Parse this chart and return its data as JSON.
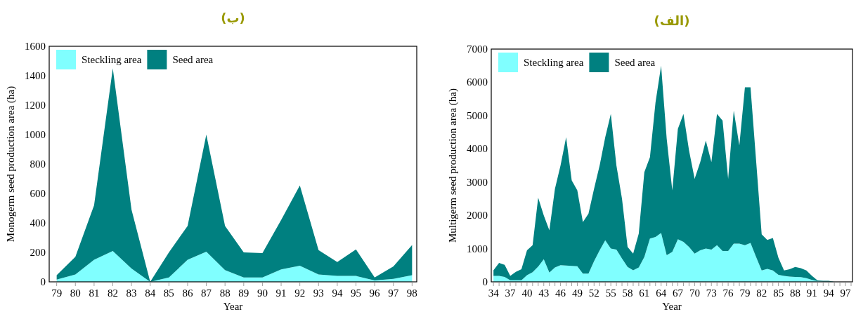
{
  "chart_data": [
    {
      "type": "area",
      "title": "(ب)",
      "xlabel": "Year",
      "ylabel": "Monogerm seed production area (ha)",
      "stacked": true,
      "legend": "top left",
      "categories": [
        "79",
        "80",
        "81",
        "82",
        "83",
        "84",
        "85",
        "86",
        "87",
        "88",
        "89",
        "90",
        "91",
        "92",
        "93",
        "94",
        "95",
        "96",
        "97",
        "98"
      ],
      "series": [
        {
          "name": "Steckling area",
          "color": "#80ffff",
          "values": [
            15,
            50,
            150,
            210,
            90,
            0,
            30,
            150,
            205,
            80,
            30,
            30,
            85,
            110,
            50,
            40,
            40,
            10,
            20,
            45
          ]
        },
        {
          "name": "Seed area",
          "color": "#008080",
          "values": [
            30,
            120,
            370,
            1240,
            400,
            0,
            170,
            230,
            795,
            300,
            170,
            165,
            335,
            545,
            165,
            95,
            180,
            20,
            85,
            205
          ]
        }
      ],
      "ylim": [
        0,
        1600
      ],
      "yticks": [
        0,
        200,
        400,
        600,
        800,
        1000,
        1200,
        1400,
        1600
      ]
    },
    {
      "type": "area",
      "title": "(الف)",
      "xlabel": "Year",
      "ylabel": "Multigerm seed production area (ha)",
      "stacked": true,
      "legend": "top left",
      "categories": [
        "34",
        null,
        null,
        "37",
        null,
        null,
        "40",
        null,
        null,
        "43",
        null,
        null,
        "46",
        null,
        null,
        "49",
        null,
        null,
        "52",
        null,
        null,
        "55",
        null,
        null,
        "58",
        null,
        null,
        "61",
        null,
        null,
        "64",
        null,
        null,
        "67",
        null,
        null,
        "70",
        null,
        null,
        "73",
        null,
        null,
        "76",
        null,
        null,
        "79",
        null,
        null,
        "82",
        null,
        null,
        "85",
        null,
        null,
        "88",
        null,
        null,
        "91",
        null,
        null,
        "94",
        null,
        null,
        "97",
        null
      ],
      "series": [
        {
          "name": "Steckling area",
          "color": "#80ffff",
          "values": [
            180,
            180,
            150,
            50,
            50,
            50,
            200,
            290,
            460,
            680,
            280,
            430,
            500,
            490,
            480,
            470,
            250,
            250,
            620,
            950,
            1250,
            1000,
            970,
            700,
            450,
            350,
            430,
            750,
            1300,
            1350,
            1470,
            800,
            900,
            1280,
            1200,
            1050,
            850,
            950,
            1000,
            970,
            1100,
            930,
            930,
            1150,
            1150,
            1100,
            1170,
            750,
            340,
            390,
            340,
            210,
            180,
            160,
            150,
            140,
            110,
            60,
            20,
            10,
            10,
            0,
            0,
            0,
            0
          ]
        },
        {
          "name": "Seed area",
          "color": "#008080",
          "values": [
            170,
            390,
            360,
            130,
            250,
            330,
            750,
            810,
            2070,
            1320,
            1270,
            2370,
            3000,
            3860,
            2570,
            2280,
            1550,
            1800,
            2180,
            2550,
            3100,
            4050,
            2530,
            1800,
            600,
            500,
            1020,
            2550,
            2450,
            4050,
            5030,
            3500,
            1850,
            3320,
            3850,
            2900,
            2250,
            2650,
            3250,
            2630,
            3950,
            3920,
            2170,
            4000,
            2950,
            4750,
            4680,
            2900,
            1090,
            870,
            980,
            510,
            160,
            220,
            300,
            270,
            230,
            120,
            20,
            20,
            20,
            0,
            0,
            0,
            0
          ]
        }
      ],
      "ylim": [
        0,
        7000
      ],
      "yticks": [
        0,
        1000,
        2000,
        3000,
        4000,
        5000,
        6000,
        7000
      ]
    }
  ]
}
